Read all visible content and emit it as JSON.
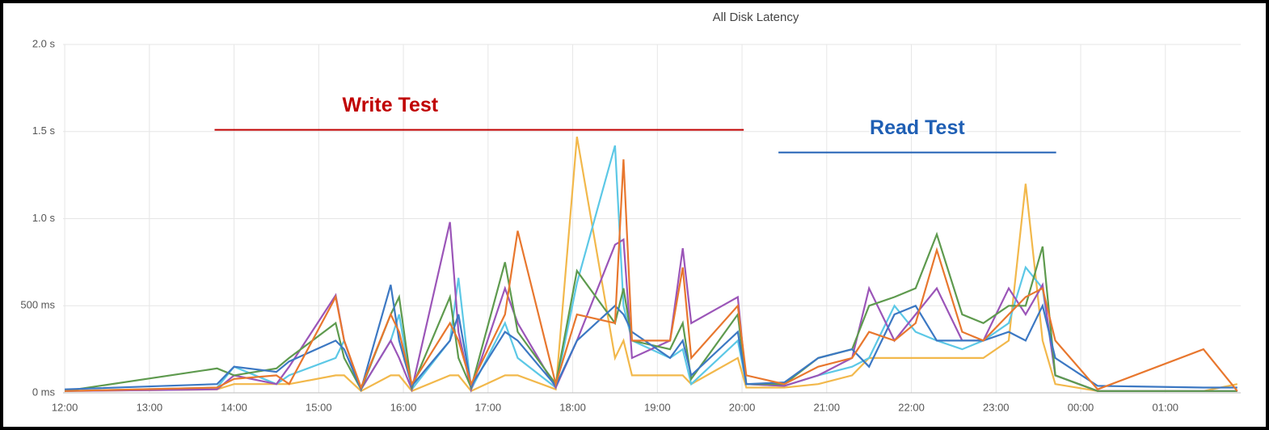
{
  "chart_data": {
    "type": "line",
    "title": "All Disk Latency",
    "xlim": [
      11.98,
      25.89
    ],
    "xticks": [
      {
        "value": 12,
        "label": "12:00"
      },
      {
        "value": 13,
        "label": "13:00"
      },
      {
        "value": 14,
        "label": "14:00"
      },
      {
        "value": 15,
        "label": "15:00"
      },
      {
        "value": 16,
        "label": "16:00"
      },
      {
        "value": 17,
        "label": "17:00"
      },
      {
        "value": 18,
        "label": "18:00"
      },
      {
        "value": 19,
        "label": "19:00"
      },
      {
        "value": 20,
        "label": "20:00"
      },
      {
        "value": 21,
        "label": "21:00"
      },
      {
        "value": 22,
        "label": "22:00"
      },
      {
        "value": 23,
        "label": "23:00"
      },
      {
        "value": 24,
        "label": "00:00"
      },
      {
        "value": 25,
        "label": "01:00"
      }
    ],
    "ylim": [
      0,
      2
    ],
    "yticks": [
      {
        "value": 0,
        "label": "0 ms"
      },
      {
        "value": 0.5,
        "label": "500 ms"
      },
      {
        "value": 1,
        "label": "1.0 s"
      },
      {
        "value": 1.5,
        "label": "1.5 s"
      },
      {
        "value": 2,
        "label": "2.0 s"
      }
    ],
    "grid": true,
    "x": [
      12.0,
      13.8,
      14.0,
      14.5,
      14.65,
      15.2,
      15.3,
      15.5,
      15.85,
      15.95,
      16.1,
      16.55,
      16.65,
      16.8,
      17.2,
      17.35,
      17.8,
      18.05,
      18.5,
      18.6,
      18.7,
      19.15,
      19.3,
      19.4,
      19.95,
      20.05,
      20.5,
      20.9,
      21.3,
      21.5,
      21.8,
      22.05,
      22.3,
      22.6,
      22.85,
      23.15,
      23.35,
      23.55,
      23.7,
      24.2,
      25.45,
      25.85
    ],
    "series": [
      {
        "color": "#f2b84b",
        "values": [
          0.01,
          0.02,
          0.05,
          0.05,
          0.05,
          0.1,
          0.1,
          0.01,
          0.1,
          0.1,
          0.01,
          0.1,
          0.1,
          0.01,
          0.1,
          0.1,
          0.02,
          1.47,
          0.2,
          0.3,
          0.1,
          0.1,
          0.1,
          0.05,
          0.2,
          0.03,
          0.03,
          0.05,
          0.1,
          0.2,
          0.2,
          0.2,
          0.2,
          0.2,
          0.2,
          0.3,
          1.2,
          0.3,
          0.05,
          0.01,
          0.01,
          0.05
        ]
      },
      {
        "color": "#5cc8e6",
        "values": [
          0.01,
          0.03,
          0.15,
          0.05,
          0.1,
          0.2,
          0.3,
          0.02,
          0.3,
          0.45,
          0.02,
          0.3,
          0.66,
          0.02,
          0.4,
          0.2,
          0.03,
          0.63,
          1.42,
          0.5,
          0.3,
          0.2,
          0.25,
          0.05,
          0.3,
          0.05,
          0.04,
          0.1,
          0.15,
          0.2,
          0.5,
          0.35,
          0.3,
          0.25,
          0.3,
          0.4,
          0.72,
          0.6,
          0.1,
          0.01,
          0.01,
          0.01
        ]
      },
      {
        "color": "#9b55b8",
        "values": [
          0.01,
          0.02,
          0.1,
          0.05,
          0.15,
          0.56,
          0.3,
          0.02,
          0.3,
          0.2,
          0.02,
          0.98,
          0.35,
          0.02,
          0.6,
          0.4,
          0.03,
          0.3,
          0.85,
          0.88,
          0.2,
          0.3,
          0.83,
          0.4,
          0.55,
          0.05,
          0.04,
          0.1,
          0.2,
          0.6,
          0.3,
          0.45,
          0.6,
          0.3,
          0.3,
          0.6,
          0.45,
          0.62,
          0.1,
          0.01,
          0.01,
          0.01
        ]
      },
      {
        "color": "#5e9a4e",
        "values": [
          0.01,
          0.14,
          0.1,
          0.14,
          0.2,
          0.4,
          0.2,
          0.02,
          0.45,
          0.55,
          0.03,
          0.55,
          0.2,
          0.03,
          0.75,
          0.35,
          0.05,
          0.7,
          0.4,
          0.6,
          0.3,
          0.25,
          0.4,
          0.08,
          0.45,
          0.05,
          0.05,
          0.2,
          0.25,
          0.5,
          0.55,
          0.6,
          0.91,
          0.45,
          0.4,
          0.5,
          0.5,
          0.84,
          0.1,
          0.01,
          0.01,
          0.01
        ]
      },
      {
        "color": "#3c78c3",
        "values": [
          0.02,
          0.05,
          0.15,
          0.12,
          0.18,
          0.3,
          0.25,
          0.02,
          0.62,
          0.3,
          0.04,
          0.3,
          0.45,
          0.04,
          0.35,
          0.3,
          0.04,
          0.3,
          0.5,
          0.45,
          0.35,
          0.2,
          0.3,
          0.1,
          0.35,
          0.05,
          0.06,
          0.2,
          0.25,
          0.15,
          0.45,
          0.5,
          0.3,
          0.3,
          0.3,
          0.35,
          0.3,
          0.5,
          0.2,
          0.04,
          0.03,
          0.03
        ]
      },
      {
        "color": "#e8772e",
        "values": [
          0.01,
          0.03,
          0.08,
          0.1,
          0.05,
          0.55,
          0.3,
          0.03,
          0.45,
          0.35,
          0.05,
          0.4,
          0.3,
          0.05,
          0.45,
          0.93,
          0.05,
          0.45,
          0.4,
          1.34,
          0.3,
          0.3,
          0.72,
          0.2,
          0.5,
          0.1,
          0.05,
          0.15,
          0.2,
          0.35,
          0.3,
          0.4,
          0.82,
          0.35,
          0.3,
          0.45,
          0.55,
          0.6,
          0.3,
          0.02,
          0.25,
          0.01
        ]
      }
    ],
    "annotations": [
      {
        "text": "Write Test",
        "color": "#c00000",
        "xrange": [
          13.77,
          20.02
        ],
        "y": 1.51
      },
      {
        "text": "Read Test",
        "color": "#1f5fb4",
        "xrange": [
          20.43,
          23.71
        ],
        "y": 1.38
      }
    ]
  }
}
